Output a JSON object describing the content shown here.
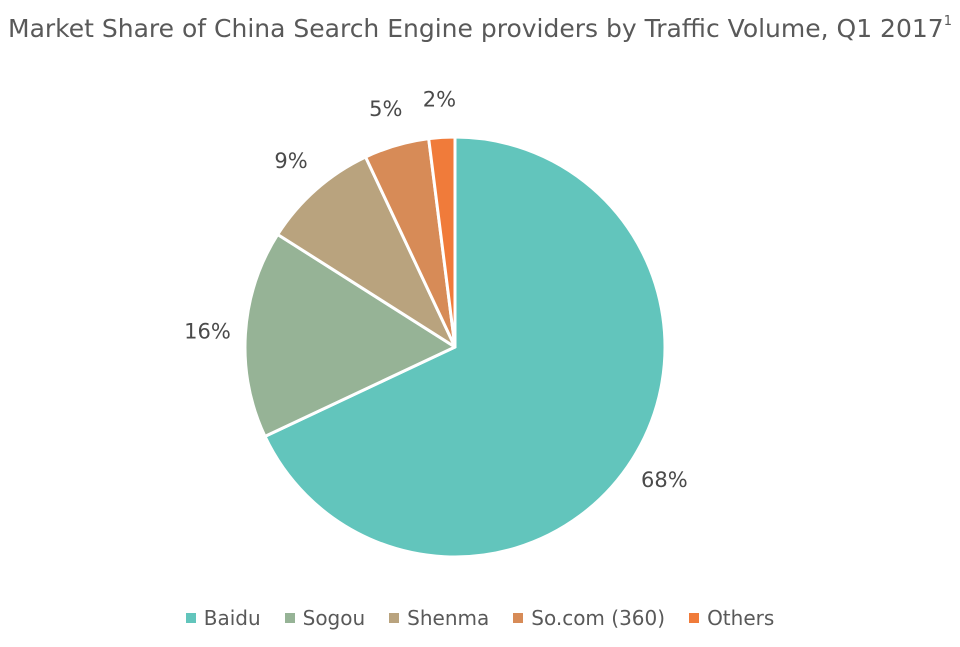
{
  "chart_data": {
    "type": "pie",
    "title": "Market Share of China Search Engine providers by Traffic Volume, Q1 2017",
    "title_superscript": "1",
    "categories": [
      "Baidu",
      "Sogou",
      "Shenma",
      "So.com (360)",
      "Others"
    ],
    "values": [
      68,
      16,
      9,
      5,
      2
    ],
    "data_labels": [
      "68%",
      "16%",
      "9%",
      "5%",
      "2%"
    ],
    "colors": [
      "#62C5BC",
      "#96B396",
      "#B9A37E",
      "#D78B57",
      "#F07B3A"
    ],
    "legend_position": "bottom",
    "start_angle": "12 o'clock",
    "direction": "clockwise",
    "slice_border_color": "#ffffff"
  }
}
